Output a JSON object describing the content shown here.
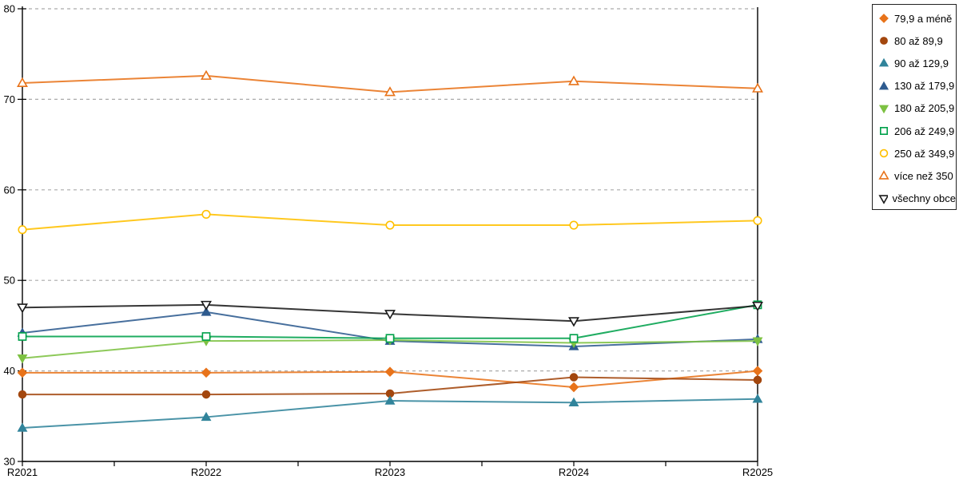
{
  "chart_data": {
    "type": "line",
    "title": "",
    "xlabel": "",
    "ylabel": "",
    "categories": [
      "R2021",
      "R2022",
      "R2023",
      "R2024",
      "R2025"
    ],
    "ylim": [
      30,
      80
    ],
    "yticks": [
      30,
      40,
      50,
      60,
      70,
      80
    ],
    "grid": "dashed-horizontal",
    "legend_position": "top-right-outside",
    "axis_color": "#000000",
    "gridline_color": "#aaaaaa",
    "series": [
      {
        "name": "79,9 a méně",
        "color": "#E8731A",
        "marker": "diamond",
        "fill": "filled",
        "values": [
          39.8,
          39.8,
          39.9,
          38.2,
          40.0
        ]
      },
      {
        "name": "80 až 89,9",
        "color": "#A3470E",
        "marker": "circle",
        "fill": "filled",
        "values": [
          37.4,
          37.4,
          37.5,
          39.3,
          39.0
        ]
      },
      {
        "name": "90 až 129,9",
        "color": "#31849B",
        "marker": "triangle-up",
        "fill": "filled",
        "values": [
          33.7,
          34.9,
          36.7,
          36.5,
          36.9
        ]
      },
      {
        "name": "130 až 179,9",
        "color": "#2E5B8F",
        "marker": "triangle-up",
        "fill": "filled",
        "values": [
          44.2,
          46.5,
          43.3,
          42.7,
          43.5
        ]
      },
      {
        "name": "180 až 205,9",
        "color": "#7DC142",
        "marker": "triangle-down",
        "fill": "filled",
        "values": [
          41.4,
          43.3,
          43.4,
          43.1,
          43.3
        ]
      },
      {
        "name": "206 až 249,9",
        "color": "#00A14B",
        "marker": "square",
        "fill": "open",
        "values": [
          43.8,
          43.8,
          43.6,
          43.6,
          47.3
        ]
      },
      {
        "name": "250 až 349,9",
        "color": "#FFC000",
        "marker": "circle",
        "fill": "open",
        "values": [
          55.6,
          57.3,
          56.1,
          56.1,
          56.6
        ]
      },
      {
        "name": "více než 350",
        "color": "#E8731A",
        "marker": "triangle-up",
        "fill": "open",
        "values": [
          71.8,
          72.6,
          70.8,
          72.0,
          71.2
        ]
      },
      {
        "name": "všechny obce",
        "color": "#1A1A1A",
        "marker": "triangle-down",
        "fill": "open",
        "values": [
          47.0,
          47.3,
          46.3,
          45.5,
          47.2
        ]
      }
    ]
  }
}
